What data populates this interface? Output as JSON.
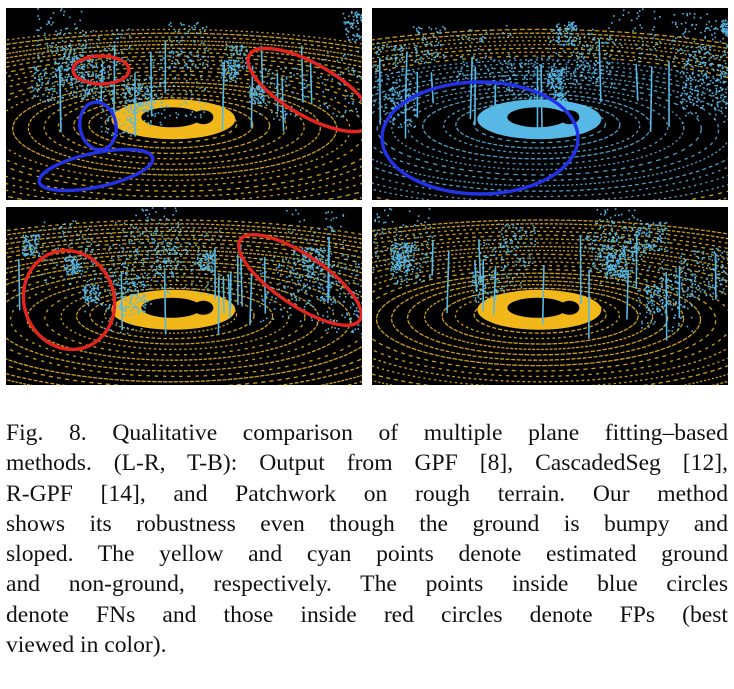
{
  "figure": {
    "panels": [
      {
        "id": "p-tl",
        "method": "GPF",
        "circles": [
          {
            "color": "red",
            "cx": 95,
            "cy": 62,
            "rx": 28,
            "ry": 14,
            "rot": 0
          },
          {
            "color": "red",
            "cx": 304,
            "cy": 82,
            "rx": 70,
            "ry": 26,
            "rot": 30
          },
          {
            "color": "blue",
            "cx": 92,
            "cy": 118,
            "rx": 18,
            "ry": 24,
            "rot": -10
          },
          {
            "color": "blue",
            "cx": 90,
            "cy": 162,
            "rx": 58,
            "ry": 17,
            "rot": -12
          }
        ]
      },
      {
        "id": "p-tr",
        "method": "CascadedSeg",
        "circles": [
          {
            "color": "blue",
            "cx": 108,
            "cy": 130,
            "rx": 98,
            "ry": 56,
            "rot": 0
          }
        ]
      },
      {
        "id": "p-bl",
        "method": "R-GPF",
        "circles": [
          {
            "color": "red",
            "cx": 63,
            "cy": 93,
            "rx": 45,
            "ry": 50,
            "rot": -20
          },
          {
            "color": "red",
            "cx": 294,
            "cy": 73,
            "rx": 72,
            "ry": 25,
            "rot": 34
          }
        ]
      },
      {
        "id": "p-br",
        "method": "Patchwork",
        "circles": []
      }
    ],
    "colors": {
      "ground": "#f2b81a",
      "nonground": "#57b8e6",
      "background": "#000000",
      "fn_circle": "#2332e6",
      "fp_circle": "#e32522"
    }
  },
  "caption": {
    "lines": [
      "Fig. 8. Qualitative comparison of multiple plane fitting–based",
      "methods. (L-R, T-B): Output from GPF [8], CascadedSeg [12],",
      "R-GPF [14], and Patchwork on rough terrain. Our method",
      "shows its robustness even though the ground is bumpy and",
      "sloped. The yellow and cyan points denote estimated ground",
      "and non-ground, respectively. The points inside blue circles",
      "denote FNs and those inside red circles denote FPs (best",
      "viewed in color)."
    ]
  }
}
